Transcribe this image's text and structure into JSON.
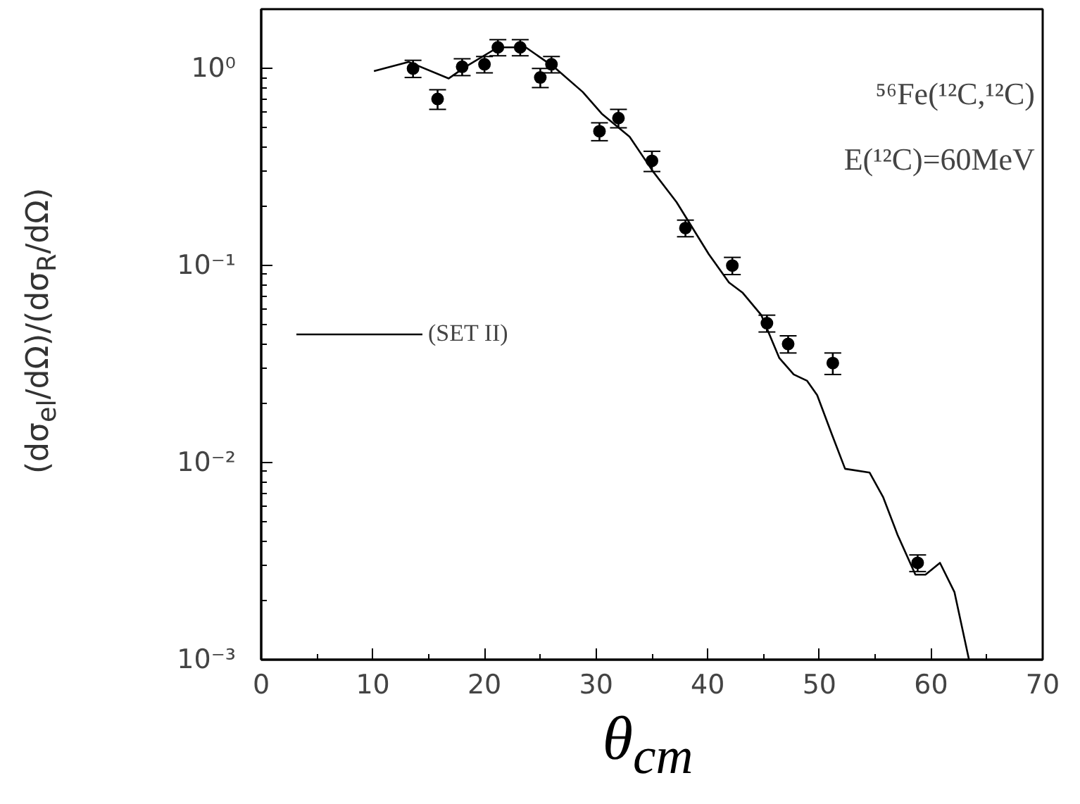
{
  "chart_data": {
    "type": "scatter",
    "xlabel": "θ$_{cm}$",
    "ylabel": "(dσ$_{el}$/dΩ)/(dσ$_{R}$/dΩ)",
    "annotations": [
      "⁵⁶Fe(¹²C,¹²C)",
      "E(¹²C)=60MeV"
    ],
    "log": "y",
    "grid": false,
    "legend": "left",
    "xlim": [
      0,
      70
    ],
    "ylim": [
      0.001,
      2
    ],
    "xticks": [
      0,
      10,
      20,
      30,
      40,
      50,
      60,
      70
    ],
    "yticks": [
      {
        "value": 0.001,
        "label": "10⁻³"
      },
      {
        "value": 0.01,
        "label": "10⁻²"
      },
      {
        "value": 0.1,
        "label": "10⁻¹"
      },
      {
        "value": 1,
        "label": "10⁰"
      }
    ],
    "series": [
      {
        "marker": "circle",
        "color": "#000000",
        "x": [
          13.6,
          15.8,
          18,
          20,
          21.2,
          23.2,
          25,
          26,
          30.3,
          32,
          35,
          38,
          42.2,
          45.3,
          47.2,
          51.2,
          58.8
        ],
        "values": [
          1.0,
          0.7,
          1.02,
          1.05,
          1.28,
          1.28,
          0.9,
          1.05,
          0.48,
          0.56,
          0.34,
          0.155,
          0.1,
          0.051,
          0.04,
          0.032,
          0.0031
        ],
        "errors": [
          0.1,
          0.08,
          0.1,
          0.1,
          0.12,
          0.12,
          0.1,
          0.1,
          0.05,
          0.06,
          0.04,
          0.015,
          0.01,
          0.005,
          0.004,
          0.004,
          0.0003
        ]
      },
      {
        "type": "line",
        "name": "(SET II)",
        "color": "#000000",
        "line_style": "solid",
        "x": [
          10.1,
          13.2,
          16.8,
          18.3,
          21.2,
          23.7,
          26.2,
          28.8,
          30.5,
          33,
          35.1,
          37.2,
          40.1,
          41.9,
          43.1,
          44.8,
          46.4,
          47.7,
          48.9,
          49.8,
          51.1,
          52.3,
          54.5,
          55.7,
          57,
          58.6,
          59.5,
          60.8,
          62.1,
          63.4
        ],
        "values": [
          0.97,
          1.08,
          0.89,
          1.02,
          1.28,
          1.28,
          1.02,
          0.76,
          0.59,
          0.45,
          0.3,
          0.21,
          0.114,
          0.082,
          0.073,
          0.056,
          0.034,
          0.028,
          0.026,
          0.022,
          0.014,
          0.0093,
          0.0089,
          0.0067,
          0.0043,
          0.0027,
          0.0027,
          0.0031,
          0.0022,
          0.001
        ]
      }
    ]
  }
}
